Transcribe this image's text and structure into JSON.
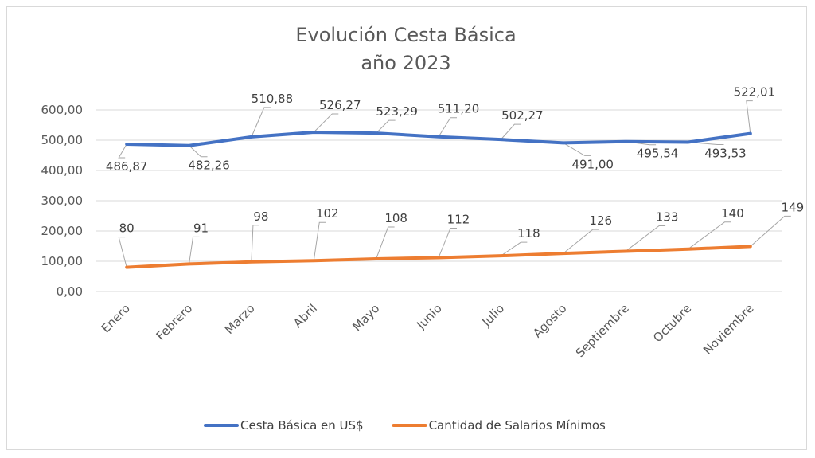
{
  "chart_data": {
    "type": "line",
    "title": "Evolución Cesta Básica",
    "subtitle": "año 2023",
    "categories": [
      "Enero",
      "Febrero",
      "Marzo",
      "Abril",
      "Mayo",
      "Junio",
      "Julio",
      "Agosto",
      "Septiembre",
      "Octubre",
      "Noviembre"
    ],
    "ylim": [
      0,
      600
    ],
    "yticks": [
      "0,00",
      "100,00",
      "200,00",
      "300,00",
      "400,00",
      "500,00",
      "600,00"
    ],
    "grid": true,
    "legend_position": "bottom",
    "series": [
      {
        "name": "Cesta Básica en US$",
        "color": "#4472c4",
        "values": [
          486.87,
          482.26,
          510.88,
          526.27,
          523.29,
          511.2,
          502.27,
          491.0,
          495.54,
          493.53,
          522.01
        ],
        "labels": [
          "486,87",
          "482,26",
          "510,88",
          "526,27",
          "523,29",
          "511,20",
          "502,27",
          "491,00",
          "495,54",
          "493,53",
          "522,01"
        ]
      },
      {
        "name": "Cantidad de Salarios Mínimos",
        "color": "#ed7d31",
        "values": [
          80,
          91,
          98,
          102,
          108,
          112,
          118,
          126,
          133,
          140,
          149
        ],
        "labels": [
          "80",
          "91",
          "98",
          "102",
          "108",
          "112",
          "118",
          "126",
          "133",
          "140",
          "149"
        ]
      }
    ]
  }
}
